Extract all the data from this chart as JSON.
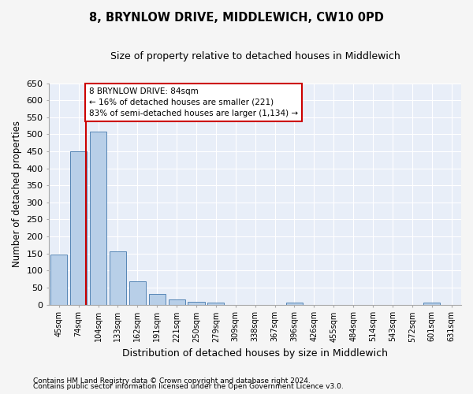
{
  "title": "8, BRYNLOW DRIVE, MIDDLEWICH, CW10 0PD",
  "subtitle": "Size of property relative to detached houses in Middlewich",
  "xlabel": "Distribution of detached houses by size in Middlewich",
  "ylabel": "Number of detached properties",
  "categories": [
    "45sqm",
    "74sqm",
    "104sqm",
    "133sqm",
    "162sqm",
    "191sqm",
    "221sqm",
    "250sqm",
    "279sqm",
    "309sqm",
    "338sqm",
    "367sqm",
    "396sqm",
    "426sqm",
    "455sqm",
    "484sqm",
    "514sqm",
    "543sqm",
    "572sqm",
    "601sqm",
    "631sqm"
  ],
  "values": [
    147,
    449,
    507,
    157,
    68,
    31,
    14,
    9,
    5,
    0,
    0,
    0,
    7,
    0,
    0,
    0,
    0,
    0,
    0,
    6,
    0
  ],
  "bar_color": "#b8cfe8",
  "bar_edge_color": "#5585b5",
  "plot_bg_color": "#e8eef8",
  "fig_bg_color": "#f5f5f5",
  "grid_color": "#ffffff",
  "ylim": [
    0,
    650
  ],
  "yticks": [
    0,
    50,
    100,
    150,
    200,
    250,
    300,
    350,
    400,
    450,
    500,
    550,
    600,
    650
  ],
  "property_line_x": 1.38,
  "property_line_color": "#cc0000",
  "annotation_text_line1": "8 BRYNLOW DRIVE: 84sqm",
  "annotation_text_line2": "← 16% of detached houses are smaller (221)",
  "annotation_text_line3": "83% of semi-detached houses are larger (1,134) →",
  "annotation_box_color": "#ffffff",
  "annotation_box_edge": "#cc0000",
  "footnote1": "Contains HM Land Registry data © Crown copyright and database right 2024.",
  "footnote2": "Contains public sector information licensed under the Open Government Licence v3.0."
}
